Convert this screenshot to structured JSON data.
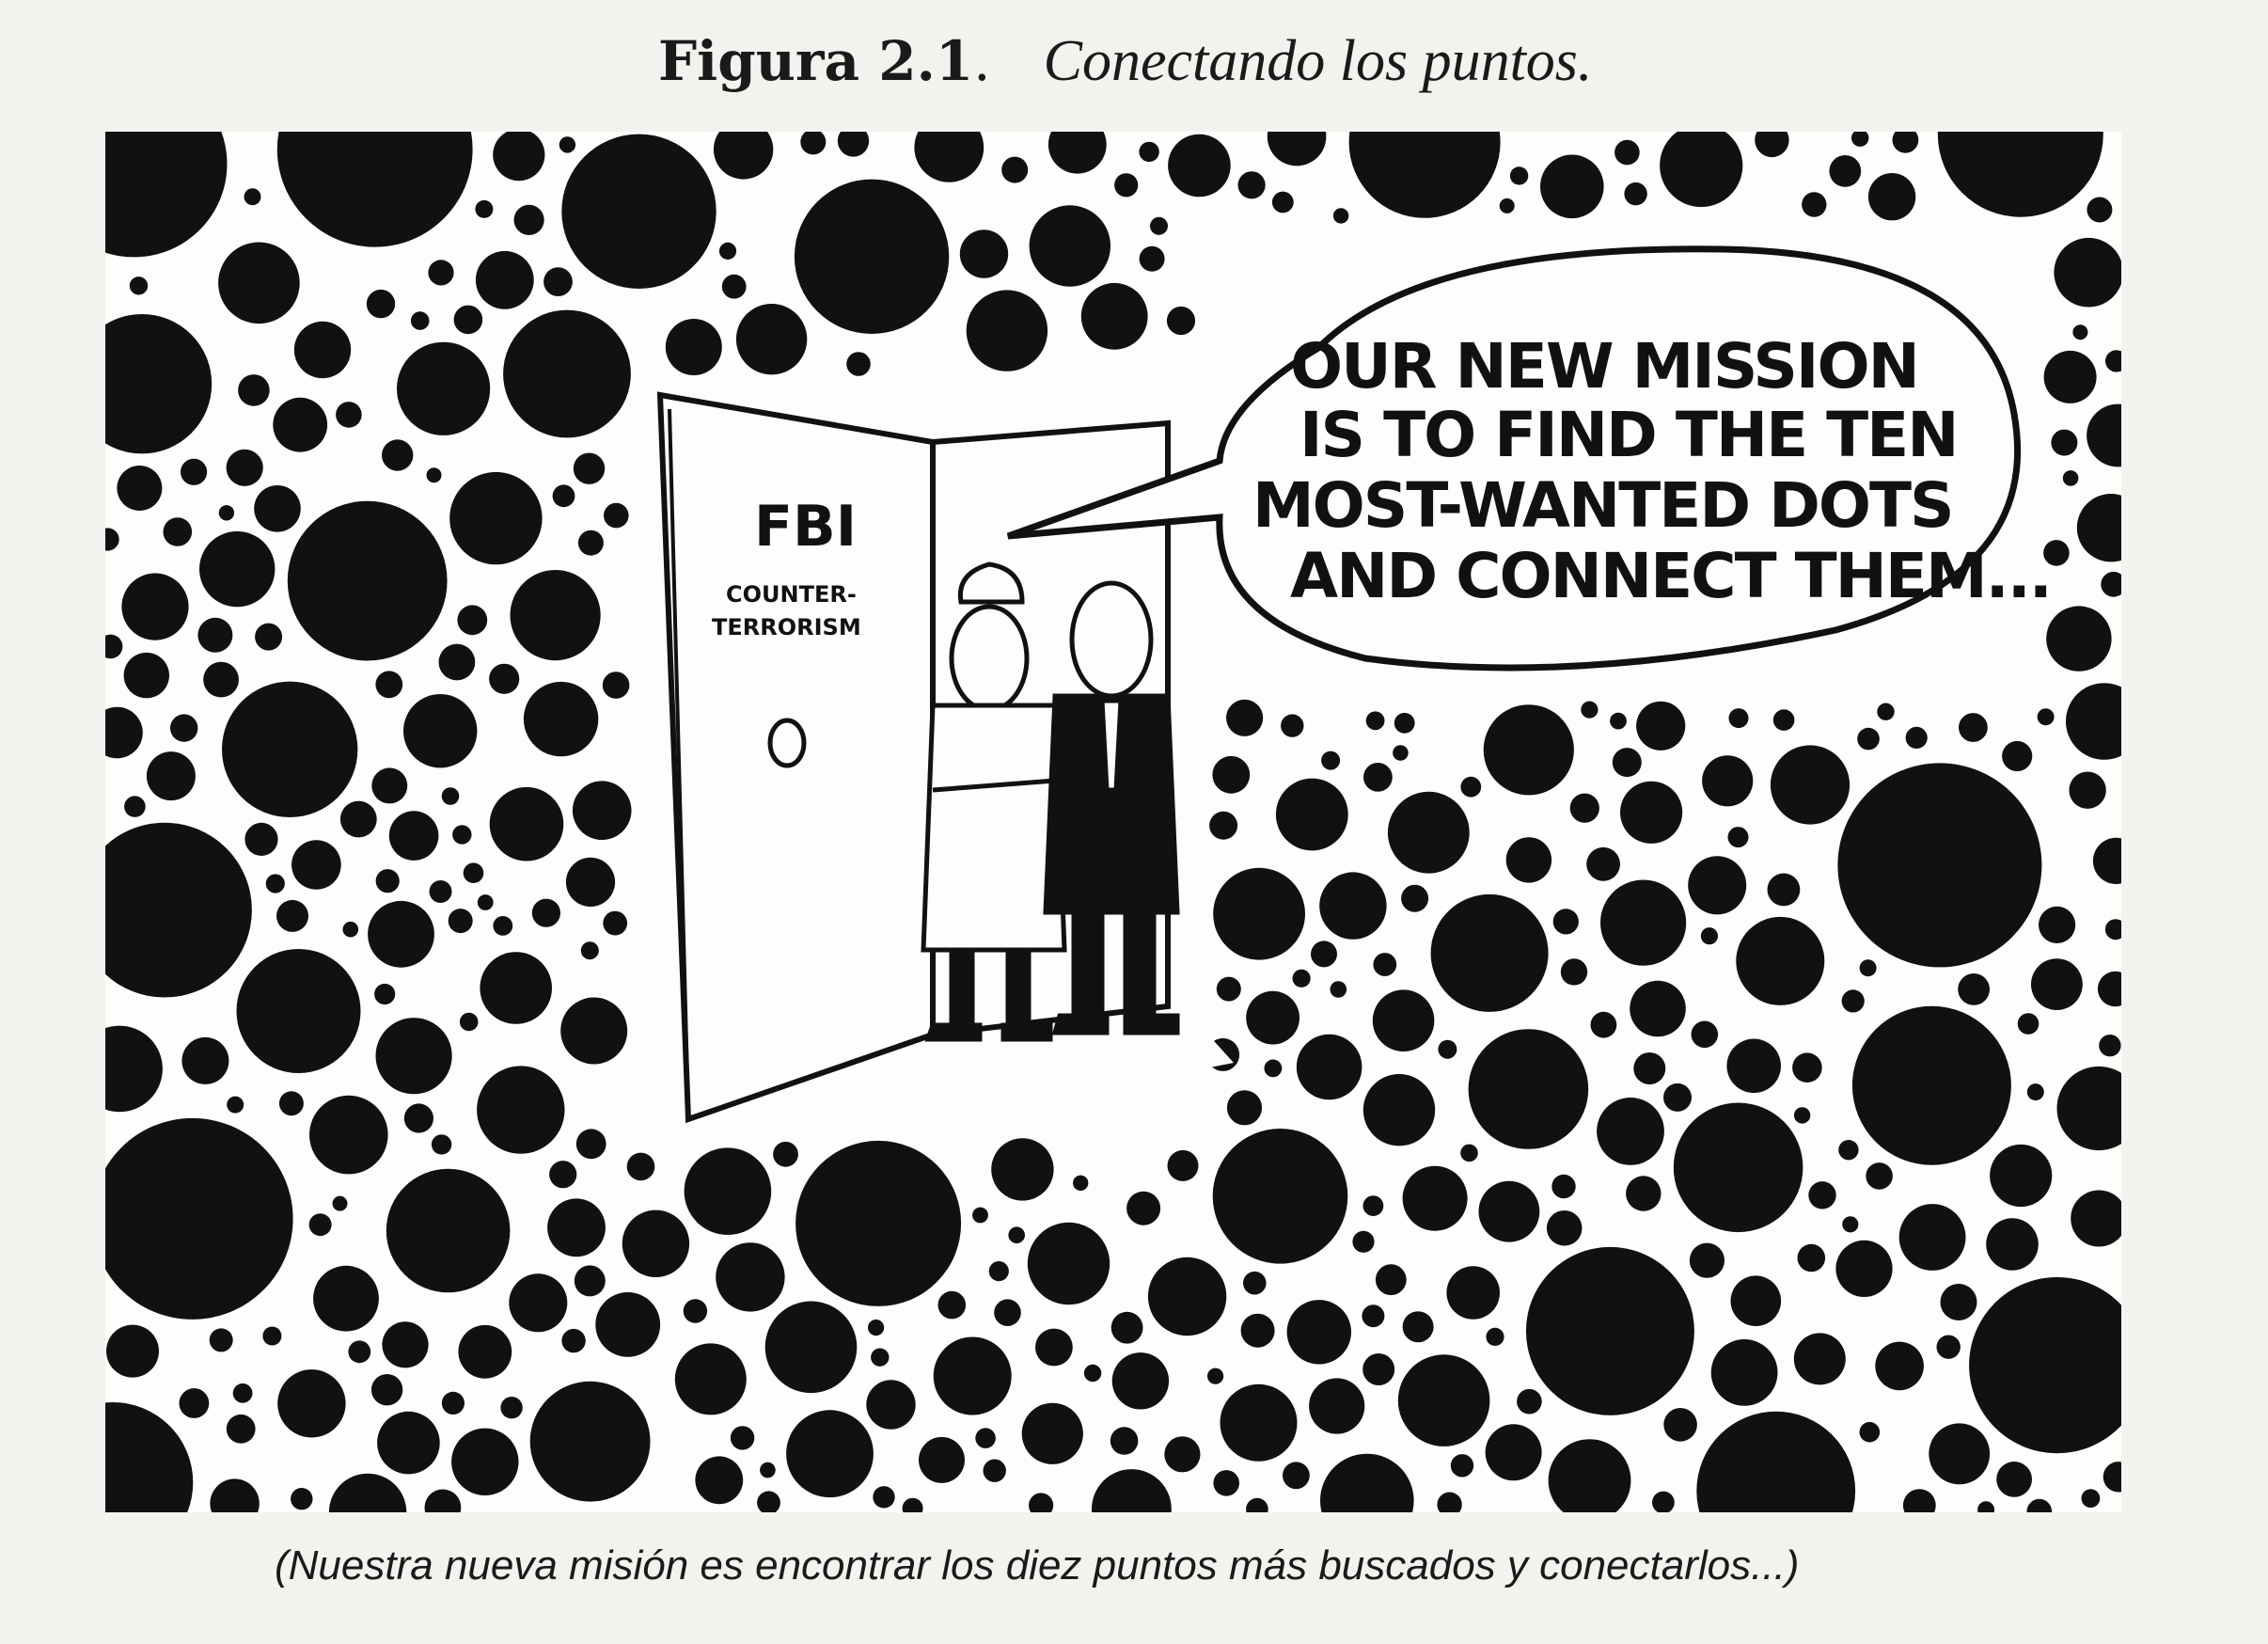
{
  "figure": {
    "label": "Figura 2.1",
    "separator": ".",
    "title": "Conectando los puntos."
  },
  "cartoon": {
    "door_sign_main": "FBI",
    "door_sign_line1": "COUNTER-",
    "door_sign_line2": "TERRORISM",
    "speech": {
      "line1": "OUR NEW MISSION",
      "line2": "IS TO FIND THE TEN",
      "line3": "MOST-WANTED DOTS",
      "line4": "AND CONNECT THEM..."
    }
  },
  "translation": "(Nuestra nueva misión es encontrar los diez puntos más buscados y conectarlos...)",
  "colors": {
    "ink": "#111111",
    "paper": "#fdfdfb",
    "page": "#f3f2ef"
  }
}
